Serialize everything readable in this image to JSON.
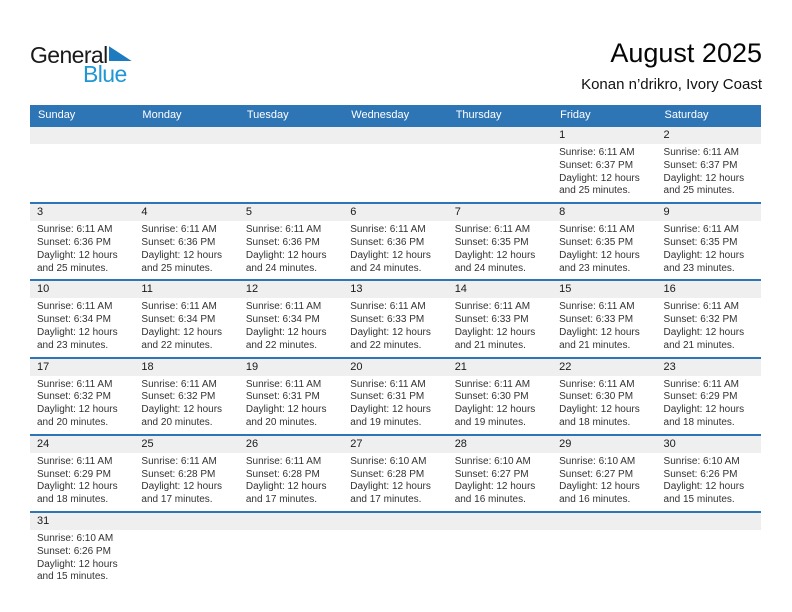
{
  "logo": {
    "part1": "General",
    "part2": "Blue",
    "triangle_icon": "blue-triangle"
  },
  "title": "August 2025",
  "subtitle": "Konan n’drikro, Ivory Coast",
  "weekday_header": [
    "Sunday",
    "Monday",
    "Tuesday",
    "Wednesday",
    "Thursday",
    "Friday",
    "Saturday"
  ],
  "labels": {
    "sunrise": "Sunrise:",
    "sunset": "Sunset:",
    "daylight": "Daylight:"
  },
  "colors": {
    "header_blue": "#2E75B6",
    "row_divider_blue": "#2E75B6",
    "day_band_gray": "#EFEFEF",
    "logo_blue": "#2096D4",
    "logo_triangle_blue": "#1F7BBF",
    "body_text": "#333333"
  },
  "weeks": [
    [
      null,
      null,
      null,
      null,
      null,
      {
        "day": "1",
        "sunrise": "6:11 AM",
        "sunset": "6:37 PM",
        "daylight": "12 hours and 25 minutes."
      },
      {
        "day": "2",
        "sunrise": "6:11 AM",
        "sunset": "6:37 PM",
        "daylight": "12 hours and 25 minutes."
      }
    ],
    [
      {
        "day": "3",
        "sunrise": "6:11 AM",
        "sunset": "6:36 PM",
        "daylight": "12 hours and 25 minutes."
      },
      {
        "day": "4",
        "sunrise": "6:11 AM",
        "sunset": "6:36 PM",
        "daylight": "12 hours and 25 minutes."
      },
      {
        "day": "5",
        "sunrise": "6:11 AM",
        "sunset": "6:36 PM",
        "daylight": "12 hours and 24 minutes."
      },
      {
        "day": "6",
        "sunrise": "6:11 AM",
        "sunset": "6:36 PM",
        "daylight": "12 hours and 24 minutes."
      },
      {
        "day": "7",
        "sunrise": "6:11 AM",
        "sunset": "6:35 PM",
        "daylight": "12 hours and 24 minutes."
      },
      {
        "day": "8",
        "sunrise": "6:11 AM",
        "sunset": "6:35 PM",
        "daylight": "12 hours and 23 minutes."
      },
      {
        "day": "9",
        "sunrise": "6:11 AM",
        "sunset": "6:35 PM",
        "daylight": "12 hours and 23 minutes."
      }
    ],
    [
      {
        "day": "10",
        "sunrise": "6:11 AM",
        "sunset": "6:34 PM",
        "daylight": "12 hours and 23 minutes."
      },
      {
        "day": "11",
        "sunrise": "6:11 AM",
        "sunset": "6:34 PM",
        "daylight": "12 hours and 22 minutes."
      },
      {
        "day": "12",
        "sunrise": "6:11 AM",
        "sunset": "6:34 PM",
        "daylight": "12 hours and 22 minutes."
      },
      {
        "day": "13",
        "sunrise": "6:11 AM",
        "sunset": "6:33 PM",
        "daylight": "12 hours and 22 minutes."
      },
      {
        "day": "14",
        "sunrise": "6:11 AM",
        "sunset": "6:33 PM",
        "daylight": "12 hours and 21 minutes."
      },
      {
        "day": "15",
        "sunrise": "6:11 AM",
        "sunset": "6:33 PM",
        "daylight": "12 hours and 21 minutes."
      },
      {
        "day": "16",
        "sunrise": "6:11 AM",
        "sunset": "6:32 PM",
        "daylight": "12 hours and 21 minutes."
      }
    ],
    [
      {
        "day": "17",
        "sunrise": "6:11 AM",
        "sunset": "6:32 PM",
        "daylight": "12 hours and 20 minutes."
      },
      {
        "day": "18",
        "sunrise": "6:11 AM",
        "sunset": "6:32 PM",
        "daylight": "12 hours and 20 minutes."
      },
      {
        "day": "19",
        "sunrise": "6:11 AM",
        "sunset": "6:31 PM",
        "daylight": "12 hours and 20 minutes."
      },
      {
        "day": "20",
        "sunrise": "6:11 AM",
        "sunset": "6:31 PM",
        "daylight": "12 hours and 19 minutes."
      },
      {
        "day": "21",
        "sunrise": "6:11 AM",
        "sunset": "6:30 PM",
        "daylight": "12 hours and 19 minutes."
      },
      {
        "day": "22",
        "sunrise": "6:11 AM",
        "sunset": "6:30 PM",
        "daylight": "12 hours and 18 minutes."
      },
      {
        "day": "23",
        "sunrise": "6:11 AM",
        "sunset": "6:29 PM",
        "daylight": "12 hours and 18 minutes."
      }
    ],
    [
      {
        "day": "24",
        "sunrise": "6:11 AM",
        "sunset": "6:29 PM",
        "daylight": "12 hours and 18 minutes."
      },
      {
        "day": "25",
        "sunrise": "6:11 AM",
        "sunset": "6:28 PM",
        "daylight": "12 hours and 17 minutes."
      },
      {
        "day": "26",
        "sunrise": "6:11 AM",
        "sunset": "6:28 PM",
        "daylight": "12 hours and 17 minutes."
      },
      {
        "day": "27",
        "sunrise": "6:10 AM",
        "sunset": "6:28 PM",
        "daylight": "12 hours and 17 minutes."
      },
      {
        "day": "28",
        "sunrise": "6:10 AM",
        "sunset": "6:27 PM",
        "daylight": "12 hours and 16 minutes."
      },
      {
        "day": "29",
        "sunrise": "6:10 AM",
        "sunset": "6:27 PM",
        "daylight": "12 hours and 16 minutes."
      },
      {
        "day": "30",
        "sunrise": "6:10 AM",
        "sunset": "6:26 PM",
        "daylight": "12 hours and 15 minutes."
      }
    ],
    [
      {
        "day": "31",
        "sunrise": "6:10 AM",
        "sunset": "6:26 PM",
        "daylight": "12 hours and 15 minutes."
      },
      null,
      null,
      null,
      null,
      null,
      null
    ]
  ]
}
